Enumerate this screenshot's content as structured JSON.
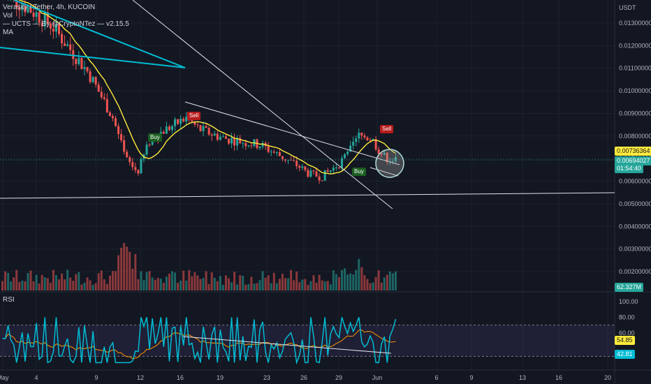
{
  "legend": {
    "symbol": "Verasity / Tether, 4h, KUCOIN",
    "vol": "Vol",
    "ucts": "— UCTS — By @CryptoNTez — v2.15.5",
    "ma": "MA"
  },
  "currency_label": "USDT",
  "rsi_label": "RSI",
  "price_tags": {
    "ma_value": "0.00736364",
    "last_price": "0.00694027",
    "countdown": "01:54:40",
    "volume": "62.327M",
    "rsi_ma": "54.85",
    "rsi": "42.81"
  },
  "signals": {
    "sell1": "Sell",
    "buy1": "Buy",
    "buy2": "Buy",
    "sell2": "Sell"
  },
  "colors": {
    "background": "#131722",
    "up": "#26a69a",
    "down": "#ef5350",
    "ma_line": "#ffeb3b",
    "trend_cyan": "#00bcd4",
    "rsi_line": "#00bcd4",
    "rsi_ma": "#ff9800",
    "price_tag": "#26a69a"
  },
  "chart_data": {
    "type": "candlestick",
    "y_ticks": [
      "0.01300000",
      "0.01200000",
      "0.01100000",
      "0.01000000",
      "0.00900000",
      "0.00800000",
      "0.00700000",
      "0.00600000",
      "0.00500000",
      "0.00400000",
      "0.00300000",
      "0.00200000"
    ],
    "x_ticks": [
      "May",
      "4",
      "9",
      "12",
      "16",
      "19",
      "23",
      "26",
      "29",
      "Jun",
      "6",
      "9",
      "13",
      "16",
      "20"
    ],
    "rsi_ticks": [
      "100.00",
      "80.00",
      "60.00"
    ],
    "close_path": [
      0.0142,
      0.014,
      0.0137,
      0.0133,
      0.0129,
      0.0122,
      0.0115,
      0.0108,
      0.0098,
      0.0088,
      0.007,
      0.0064,
      0.0078,
      0.0082,
      0.0085,
      0.0088,
      0.0083,
      0.0081,
      0.0079,
      0.0078,
      0.0077,
      0.0076,
      0.0073,
      0.007,
      0.0067,
      0.0063,
      0.0062,
      0.0066,
      0.0071,
      0.008,
      0.0079,
      0.0071,
      0.0069
    ]
  }
}
